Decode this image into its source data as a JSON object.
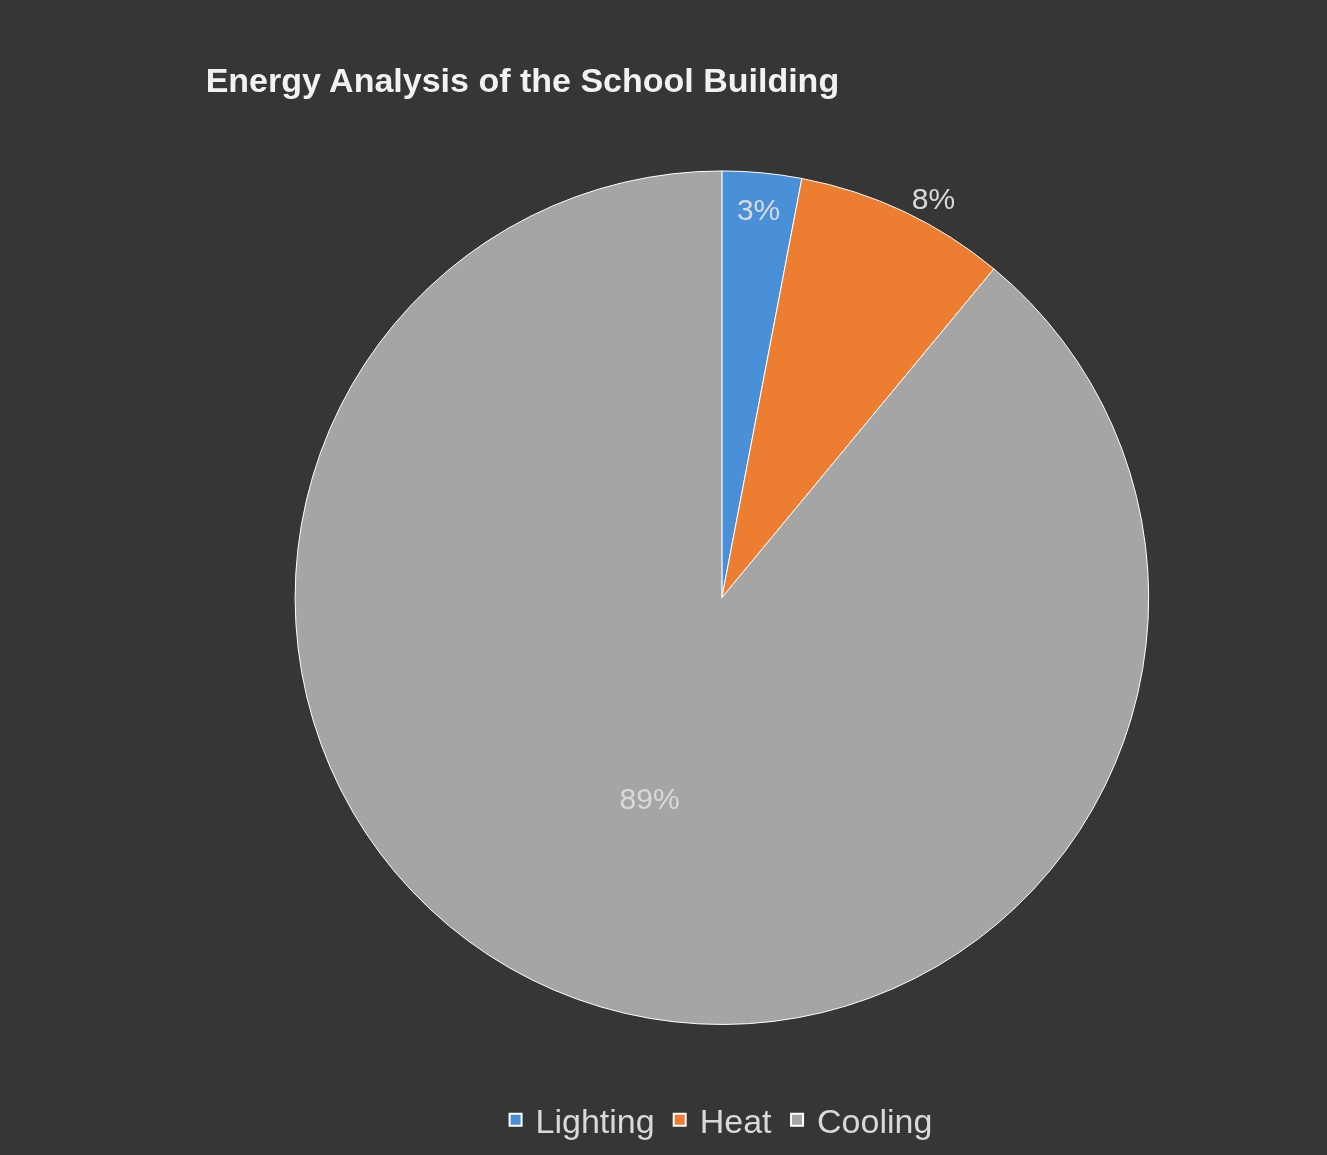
{
  "chart_data": {
    "type": "pie",
    "title": "Energy Analysis of the School Building",
    "categories": [
      "Lighting",
      "Heat",
      "Cooling"
    ],
    "values": [
      3,
      8,
      89
    ],
    "value_labels": [
      "3%",
      "8%",
      "89%"
    ],
    "colors": [
      "#4a90d9",
      "#ed7d31",
      "#a5a5a5"
    ],
    "legend": "bottom"
  }
}
